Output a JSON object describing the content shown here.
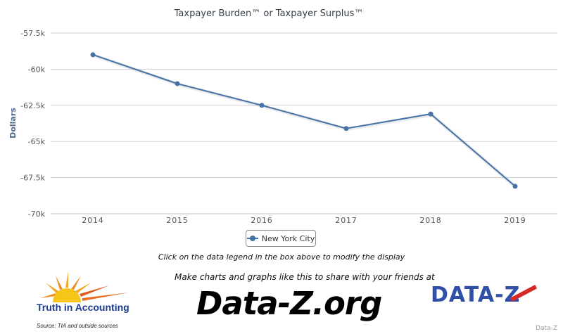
{
  "chart_data": {
    "type": "line",
    "title": "Taxpayer Burden™ or Taxpayer Surplus™",
    "xlabel": "",
    "ylabel": "Dollars",
    "categories": [
      "2014",
      "2015",
      "2016",
      "2017",
      "2018",
      "2019"
    ],
    "y_ticks": [
      "-57.5k",
      "-60k",
      "-62.5k",
      "-65k",
      "-67.5k",
      "-70k"
    ],
    "ylim": [
      -70000,
      -57500
    ],
    "grid": true,
    "legend_position": "bottom",
    "series": [
      {
        "name": "New York City",
        "values": [
          -59000,
          -61000,
          -62500,
          -64100,
          -63100,
          -68100
        ]
      }
    ]
  },
  "colors": {
    "series": "#4572a7",
    "grid": "#d0d0d0",
    "axis_label": "#4d6a8a"
  },
  "legend": {
    "item_label": "New York City"
  },
  "footer": {
    "instruction": "Click on the data legend in the box above to modify the display",
    "make_charts": "Make charts and graphs like this to share with your friends at",
    "url": "Data-Z.org",
    "tia_logo_text": "Truth in Accounting",
    "source": "Source: TIA and outside sources",
    "dz_logo_text": "DATA-Z",
    "credit": "Data-Z"
  }
}
